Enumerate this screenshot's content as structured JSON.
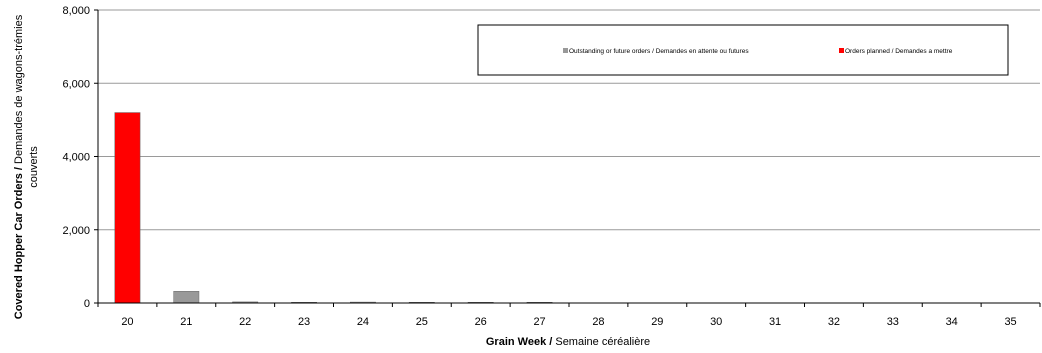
{
  "chart_data": {
    "type": "bar",
    "categories": [
      "20",
      "21",
      "22",
      "23",
      "24",
      "25",
      "26",
      "27",
      "28",
      "29",
      "30",
      "31",
      "32",
      "33",
      "34",
      "35"
    ],
    "series": [
      {
        "name": "Outstanding or future orders / Demandes en attente ou futures",
        "color": "#999999",
        "values": [
          0,
          320,
          30,
          20,
          25,
          20,
          20,
          20,
          0,
          0,
          0,
          0,
          0,
          0,
          0,
          0
        ]
      },
      {
        "name": "Orders planned  / Demandes a mettre",
        "color": "#ff0000",
        "values": [
          5200,
          0,
          0,
          0,
          0,
          0,
          0,
          0,
          0,
          0,
          0,
          0,
          0,
          0,
          0,
          0
        ]
      }
    ],
    "ylim": [
      0,
      8000
    ],
    "yticks": [
      "0",
      "2,000",
      "4,000",
      "6,000",
      "8,000"
    ],
    "ytick_values": [
      0,
      2000,
      4000,
      6000,
      8000
    ],
    "xlabel_bold": "Grain Week /",
    "xlabel_rest": " Semaine céréalière",
    "ylabel_bold": "Covered Hopper Car Orders /",
    "ylabel_rest_line1": " Demandes de wagons-trémies",
    "ylabel_line2": "couverts",
    "legend_position": "top-right",
    "grid": true
  }
}
